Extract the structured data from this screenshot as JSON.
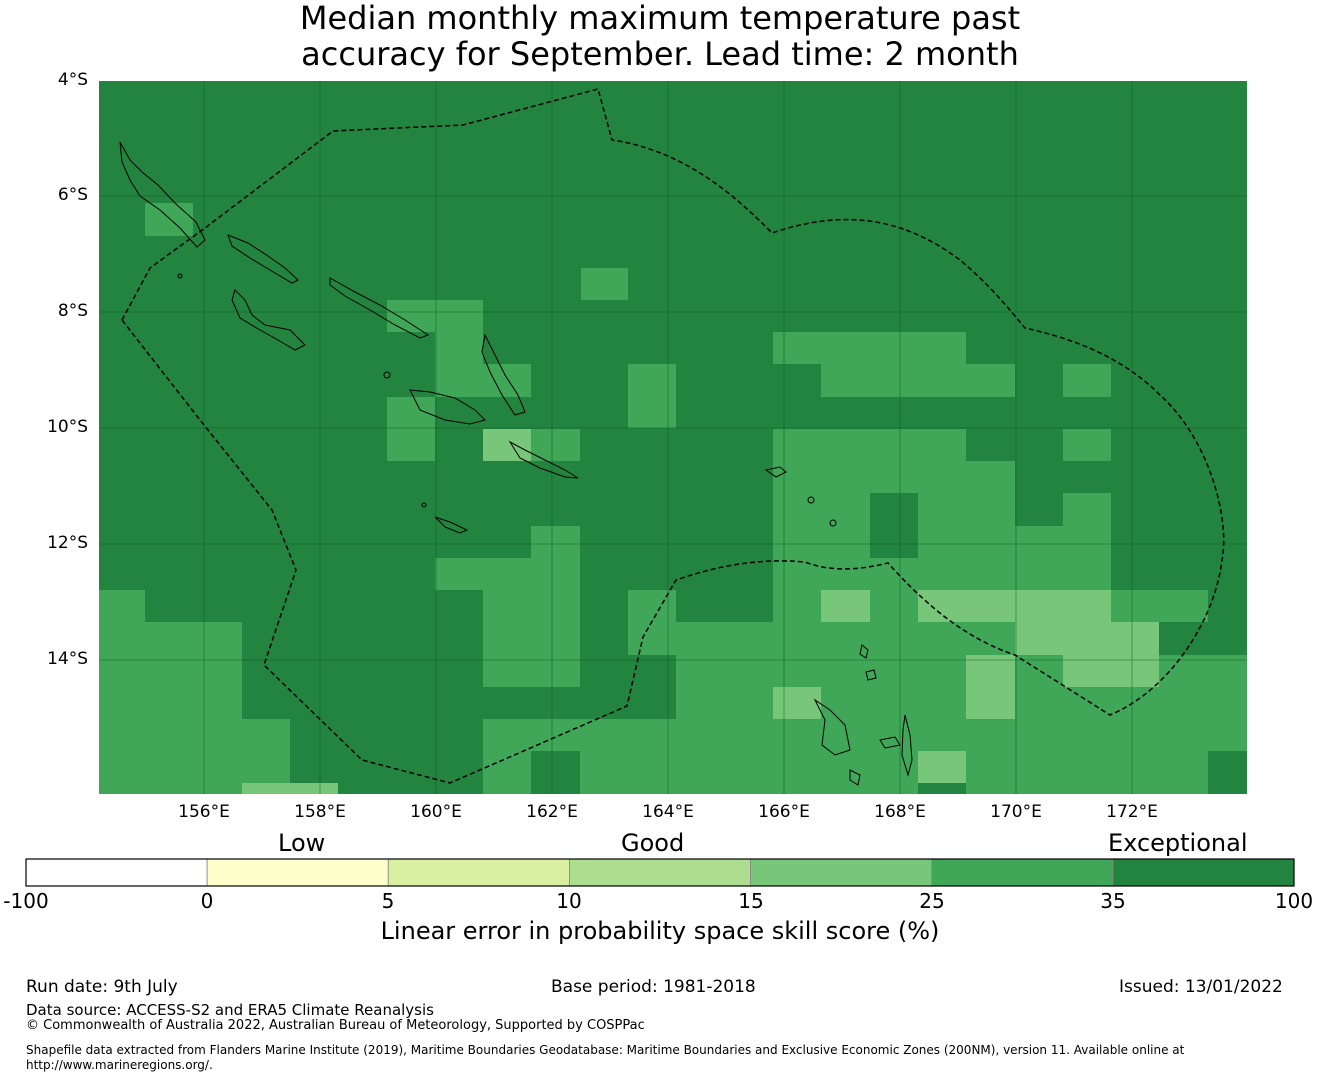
{
  "title": {
    "line1": "Median monthly maximum temperature past",
    "line2": "accuracy for September. Lead time: 2 month"
  },
  "map": {
    "lat_labels": [
      "4°S",
      "6°S",
      "8°S",
      "10°S",
      "12°S",
      "14°S"
    ],
    "lon_labels": [
      "156°E",
      "158°E",
      "160°E",
      "162°E",
      "164°E",
      "166°E",
      "168°E",
      "170°E",
      "172°E"
    ],
    "colors": {
      "exceptional_dark": "#23843f",
      "very_good": "#3fa757",
      "good_light": "#78c679",
      "good_lighter": "#addd8e",
      "low_light": "#d9f0a3",
      "low": "#ffffcc",
      "none": "#ffffff"
    }
  },
  "colorbar": {
    "categories": [
      "Low",
      "Good",
      "Exceptional"
    ],
    "ticks": [
      "-100",
      "0",
      "5",
      "10",
      "15",
      "25",
      "35",
      "100"
    ],
    "colors": [
      "#ffffff",
      "#ffffcc",
      "#d9f0a3",
      "#addd8e",
      "#78c679",
      "#3fa757",
      "#23843f"
    ],
    "label": "Linear error in probability space skill score (%)"
  },
  "footer": {
    "run_date": "Run date: 9th July",
    "base_period": "Base period: 1981-2018",
    "issued": "Issued: 13/01/2022",
    "data_source": "Data source: ACCESS-S2 and ERA5 Climate Reanalysis",
    "copyright": "© Commonwealth of Australia 2022, Australian Bureau of Meteorology, Supported by COSPPac",
    "shapefile": "Shapefile data extracted from Flanders Marine Institute (2019), Maritime Boundaries Geodatabase: Maritime Boundaries and Exclusive Economic Zones (200NM), version 11. Available online at http://www.marineregions.org/."
  }
}
